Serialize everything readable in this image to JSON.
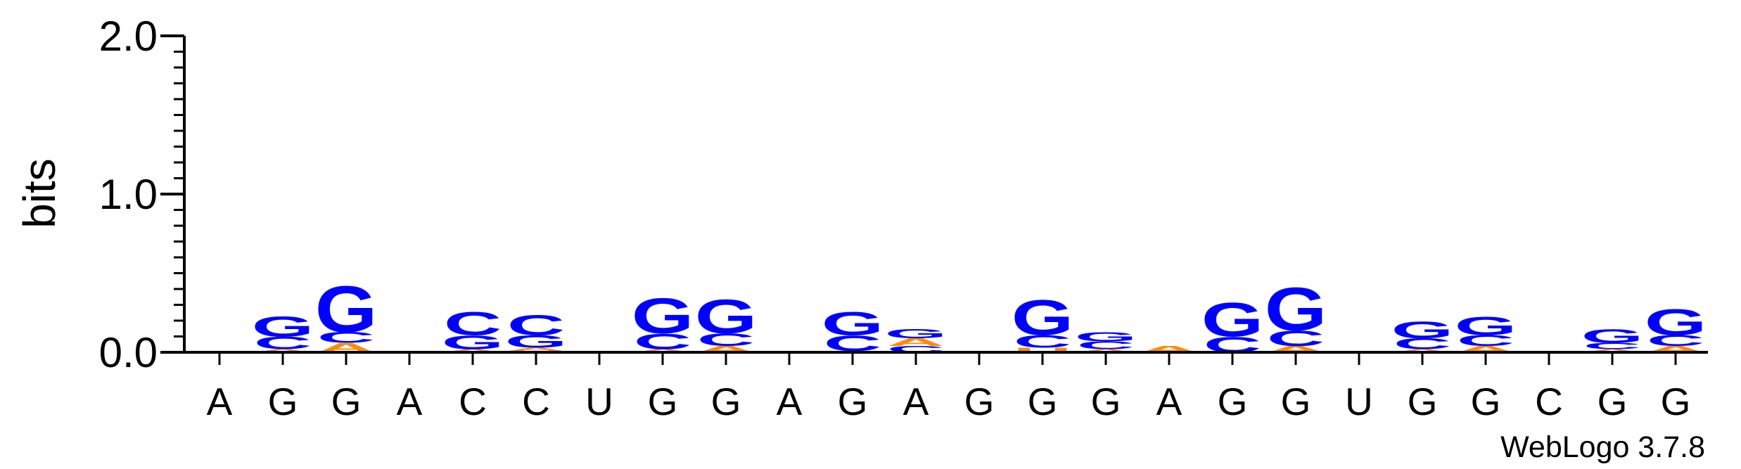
{
  "chart_data": {
    "type": "sequence-logo",
    "ylabel": "bits",
    "ylim": [
      0,
      2.0
    ],
    "yticks": [
      {
        "value": 0.0,
        "label": "0.0"
      },
      {
        "value": 1.0,
        "label": "1.0"
      },
      {
        "value": 2.0,
        "label": "2.0"
      }
    ],
    "yminor_step": 0.1,
    "categories": [
      "A",
      "G",
      "G",
      "A",
      "C",
      "C",
      "U",
      "G",
      "G",
      "A",
      "G",
      "A",
      "G",
      "G",
      "G",
      "A",
      "G",
      "G",
      "U",
      "G",
      "G",
      "C",
      "G",
      "G"
    ],
    "colors": {
      "G": "#0000ff",
      "C": "#0000ff",
      "A": "#ff8c00",
      "U": "#ff8c00"
    },
    "stacks": [
      [],
      [
        {
          "letter": "A",
          "height": 0.02
        },
        {
          "letter": "C",
          "height": 0.08
        },
        {
          "letter": "G",
          "height": 0.13
        }
      ],
      [
        {
          "letter": "A",
          "height": 0.06
        },
        {
          "letter": "C",
          "height": 0.07
        },
        {
          "letter": "G",
          "height": 0.3
        }
      ],
      [],
      [
        {
          "letter": "A",
          "height": 0.02
        },
        {
          "letter": "G",
          "height": 0.09
        },
        {
          "letter": "C",
          "height": 0.15
        }
      ],
      [
        {
          "letter": "U",
          "height": 0.01
        },
        {
          "letter": "A",
          "height": 0.02
        },
        {
          "letter": "G",
          "height": 0.08
        },
        {
          "letter": "C",
          "height": 0.13
        }
      ],
      [],
      [
        {
          "letter": "A",
          "height": 0.02
        },
        {
          "letter": "C",
          "height": 0.1
        },
        {
          "letter": "G",
          "height": 0.23
        }
      ],
      [
        {
          "letter": "A",
          "height": 0.04
        },
        {
          "letter": "C",
          "height": 0.08
        },
        {
          "letter": "G",
          "height": 0.22
        }
      ],
      [],
      [
        {
          "letter": "A",
          "height": 0.01
        },
        {
          "letter": "C",
          "height": 0.1
        },
        {
          "letter": "G",
          "height": 0.15
        }
      ],
      [
        {
          "letter": "C",
          "height": 0.04
        },
        {
          "letter": "A",
          "height": 0.05
        },
        {
          "letter": "G",
          "height": 0.06
        }
      ],
      [],
      [
        {
          "letter": "U",
          "height": 0.03
        },
        {
          "letter": "C",
          "height": 0.08
        },
        {
          "letter": "G",
          "height": 0.23
        }
      ],
      [
        {
          "letter": "A",
          "height": 0.02
        },
        {
          "letter": "C",
          "height": 0.05
        },
        {
          "letter": "G",
          "height": 0.06
        }
      ],
      [
        {
          "letter": "A",
          "height": 0.04
        }
      ],
      [
        {
          "letter": "C",
          "height": 0.1
        },
        {
          "letter": "G",
          "height": 0.22
        }
      ],
      [
        {
          "letter": "A",
          "height": 0.04
        },
        {
          "letter": "C",
          "height": 0.1
        },
        {
          "letter": "G",
          "height": 0.28
        }
      ],
      [],
      [
        {
          "letter": "A",
          "height": 0.02
        },
        {
          "letter": "C",
          "height": 0.07
        },
        {
          "letter": "G",
          "height": 0.11
        }
      ],
      [
        {
          "letter": "A",
          "height": 0.04
        },
        {
          "letter": "C",
          "height": 0.07
        },
        {
          "letter": "G",
          "height": 0.12
        }
      ],
      [],
      [
        {
          "letter": "A",
          "height": 0.02
        },
        {
          "letter": "C",
          "height": 0.04
        },
        {
          "letter": "G",
          "height": 0.09
        }
      ],
      [
        {
          "letter": "A",
          "height": 0.04
        },
        {
          "letter": "C",
          "height": 0.07
        },
        {
          "letter": "G",
          "height": 0.17
        }
      ]
    ]
  },
  "footer": {
    "credit": "WebLogo 3.7.8"
  }
}
